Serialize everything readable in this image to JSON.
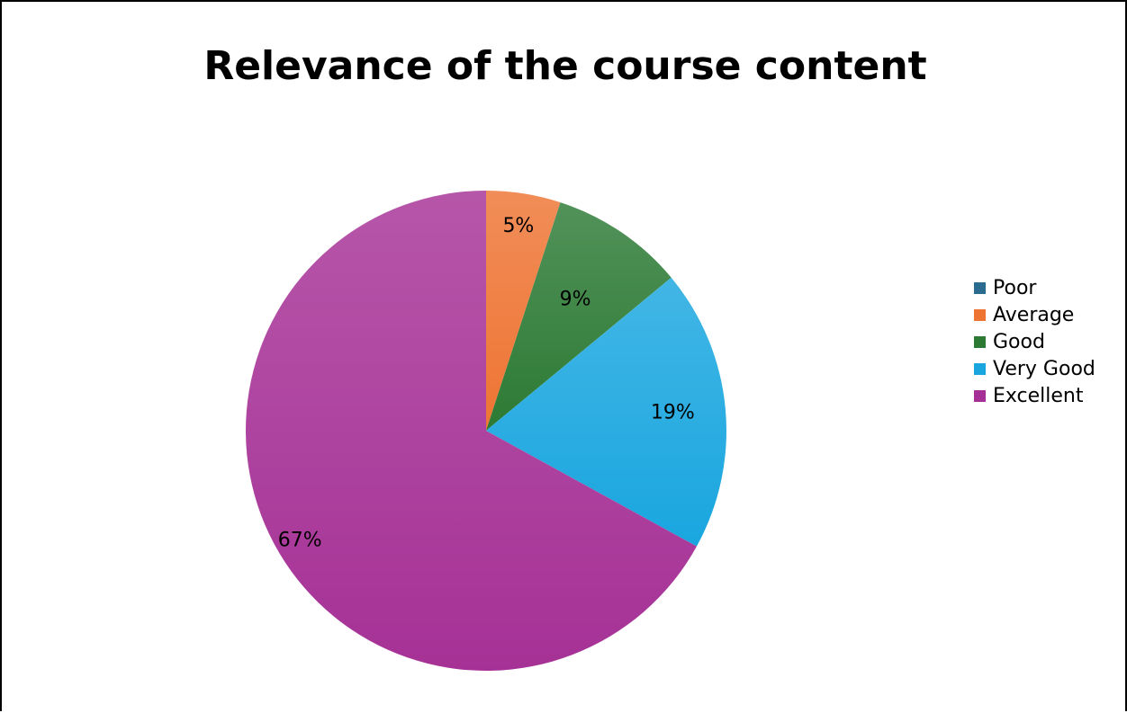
{
  "chart_data": {
    "type": "pie",
    "title": "Relevance of the course content",
    "legend_position": "right",
    "slices": [
      {
        "name": "Poor",
        "value": 0,
        "label": "",
        "color": "#2a6b8f"
      },
      {
        "name": "Average",
        "value": 5,
        "label": "5%",
        "color": "#ee7433"
      },
      {
        "name": "Good",
        "value": 9,
        "label": "9%",
        "color": "#2c7a34"
      },
      {
        "name": "Very Good",
        "value": 19,
        "label": "19%",
        "color": "#19a6df"
      },
      {
        "name": "Excellent",
        "value": 67,
        "label": "67%",
        "color": "#a63196"
      }
    ]
  }
}
